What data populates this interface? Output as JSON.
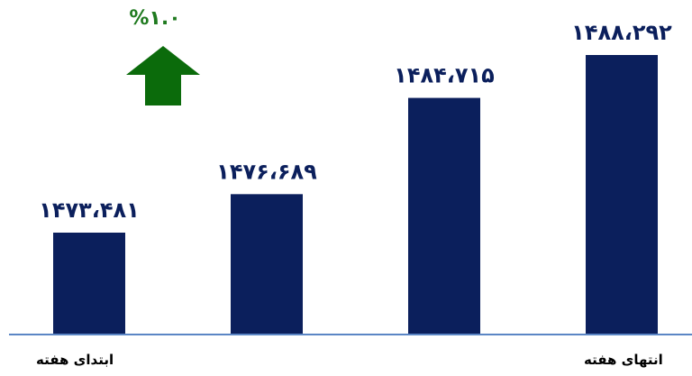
{
  "chart_data": {
    "type": "bar",
    "values": [
      1473481,
      1476689,
      1484715,
      1488292
    ],
    "value_labels": [
      "۱۴۷۳،۴۸۱",
      "۱۴۷۶،۶۸۹",
      "۱۴۸۴،۷۱۵",
      "۱۴۸۸،۲۹۲"
    ],
    "start_label": "ابتدای هفته",
    "end_label": "انتهای هفته",
    "change_label": "%۱.۰",
    "change_direction": "up",
    "colors": {
      "bar": "#0b1f5c",
      "axis": "#5b86c5",
      "arrow": "#0b6b0b",
      "change_text": "#1f7a1f"
    }
  }
}
